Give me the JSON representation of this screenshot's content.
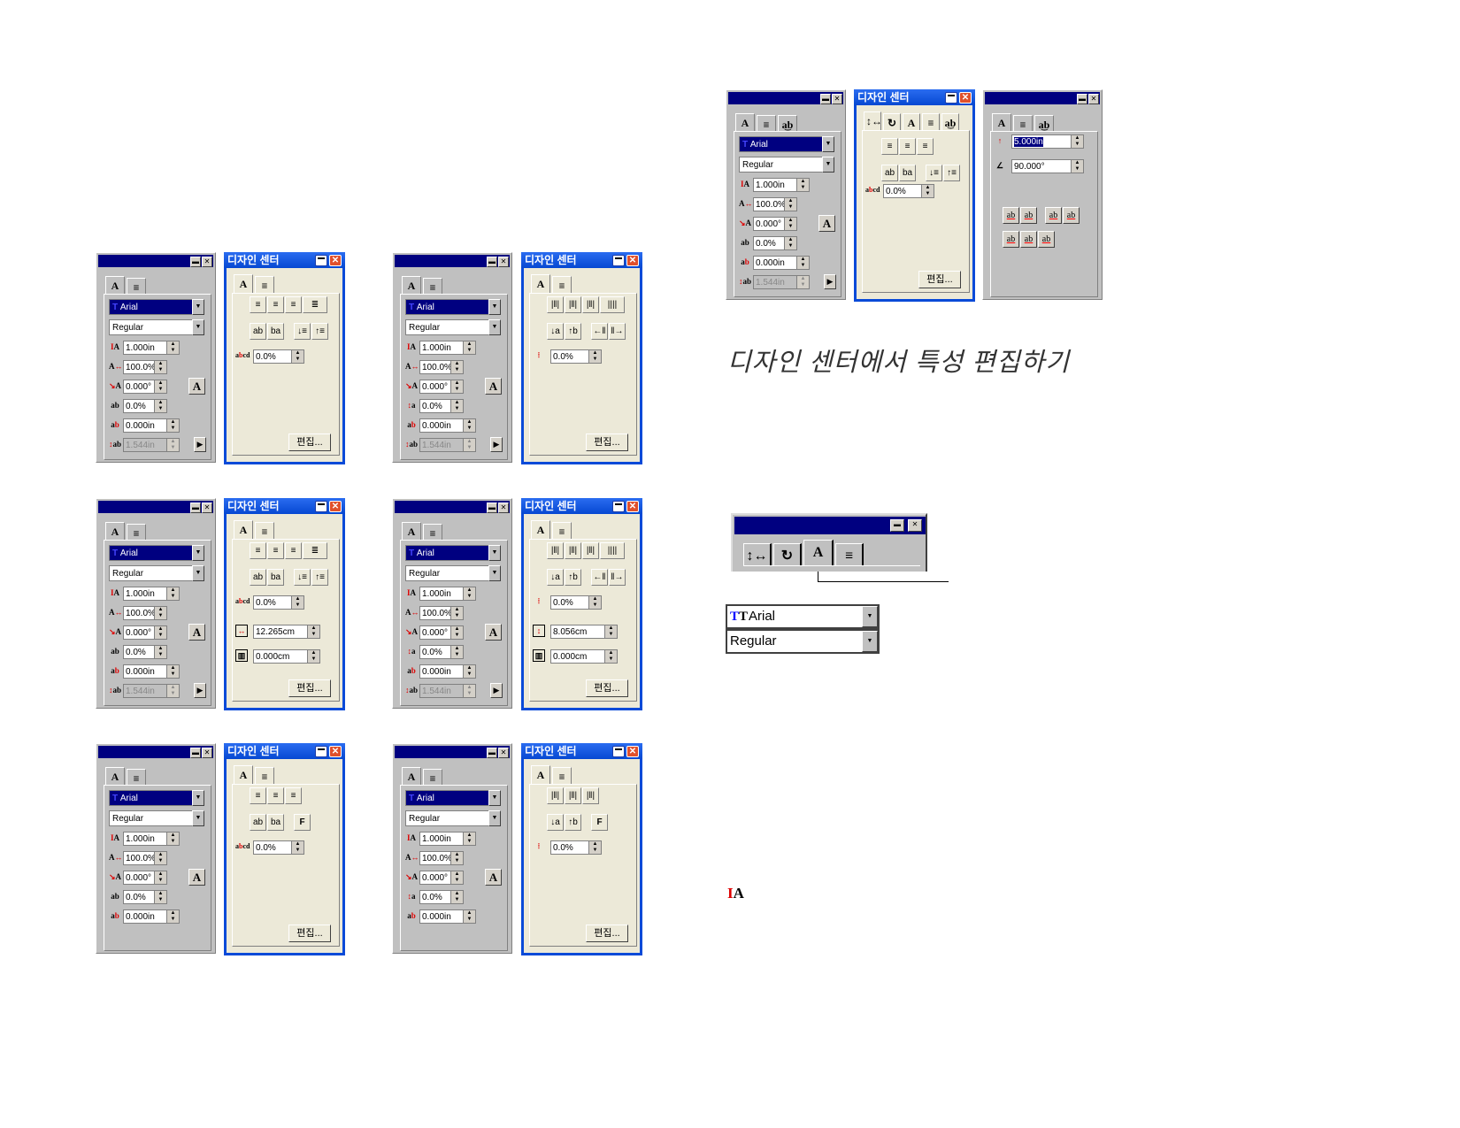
{
  "colors": {
    "title_bar_classic": "#000080",
    "title_bar_xp": "#0a4ad8",
    "panel_classic": "#c0c0c0",
    "panel_xp": "#ece9d8",
    "accent_red": "#dd0000"
  },
  "xp_title": "디자인 센터",
  "edit_label": "편집...",
  "caption": "디자인 센터에서 특성 편집하기",
  "panels": [
    {
      "type": "gray",
      "tabs": [
        "font-A-icon",
        "align-icon"
      ],
      "font": "Arial",
      "style": "Regular",
      "fields": [
        {
          "icon": "line-spacing-icon",
          "value": "1.000in"
        },
        {
          "icon": "char-width-icon",
          "value": "100.0%"
        },
        {
          "icon": "char-rotation-icon",
          "value": "0.000°"
        },
        {
          "icon": "char-spacing-icon",
          "value": "0.0%"
        },
        {
          "icon": "baseline-shift-icon",
          "value": "0.000in"
        },
        {
          "icon": "line-height-icon",
          "value": "1.544in",
          "disabled": true
        }
      ]
    },
    {
      "type": "xp",
      "tabs": [
        "font-A-icon",
        "align-icon"
      ],
      "rows": [
        [
          [
            "align-left-icon",
            "align-center-icon",
            "align-right-icon",
            "justify-icon"
          ]
        ],
        [
          [
            "ltr-icon",
            "rtl-icon"
          ],
          [
            "down-order-icon",
            "up-order-icon"
          ]
        ]
      ],
      "spin": {
        "icon": "kerning-icon",
        "value": "0.0%"
      }
    },
    {
      "type": "gray",
      "vertical": true,
      "tabs": [
        "font-A-icon",
        "align-icon"
      ],
      "font": "Arial",
      "style": "Regular",
      "fields": [
        {
          "icon": "line-spacing-icon",
          "value": "1.000in"
        },
        {
          "icon": "char-width-icon",
          "value": "100.0%"
        },
        {
          "icon": "char-rotation-icon",
          "value": "0.000°"
        },
        {
          "icon": "vertical-spacing-icon",
          "value": "0.0%"
        },
        {
          "icon": "baseline-shift-icon",
          "value": "0.000in"
        },
        {
          "icon": "line-height-icon",
          "value": "1.544in",
          "disabled": true
        }
      ]
    },
    {
      "type": "xp",
      "tabs": [
        "font-A-icon",
        "align-icon"
      ],
      "rows": [
        [
          [
            "valign-top-icon",
            "valign-center-icon",
            "valign-bottom-icon",
            "vjustify-icon"
          ]
        ],
        [
          [
            "ttb-icon",
            "btt-icon"
          ],
          [
            "left-order-icon",
            "right-order-icon"
          ]
        ]
      ],
      "spin": {
        "icon": "vertical-kerning-icon",
        "value": "0.0%"
      }
    },
    {
      "type": "gray",
      "tabs": [
        "font-A-icon",
        "align-icon"
      ],
      "font": "Arial",
      "style": "Regular",
      "fields": [
        {
          "icon": "line-spacing-icon",
          "value": "1.000in"
        },
        {
          "icon": "char-width-icon",
          "value": "100.0%"
        },
        {
          "icon": "char-rotation-icon",
          "value": "0.000°"
        },
        {
          "icon": "char-spacing-icon",
          "value": "0.0%"
        },
        {
          "icon": "baseline-shift-icon",
          "value": "0.000in"
        },
        {
          "icon": "line-height-icon",
          "value": "1.544in",
          "disabled": true
        }
      ]
    },
    {
      "type": "xp",
      "tabs": [
        "font-A-icon",
        "align-icon"
      ],
      "rows": [
        [
          [
            "align-left-icon",
            "align-center-icon",
            "align-right-icon",
            "justify-icon"
          ]
        ],
        [
          [
            "ltr-icon",
            "rtl-icon"
          ],
          [
            "down-order-icon",
            "up-order-icon"
          ]
        ]
      ],
      "spin": {
        "icon": "kerning-icon",
        "value": "0.0%"
      },
      "extra": [
        {
          "icon": "frame-width-icon",
          "value": "12.265cm"
        },
        {
          "icon": "column-gap-icon",
          "value": "0.000cm"
        }
      ]
    },
    {
      "type": "gray",
      "vertical": true,
      "tabs": [
        "font-A-icon",
        "align-icon"
      ],
      "font": "Arial",
      "style": "Regular",
      "fields": [
        {
          "icon": "line-spacing-icon",
          "value": "1.000in"
        },
        {
          "icon": "char-width-icon",
          "value": "100.0%"
        },
        {
          "icon": "char-rotation-icon",
          "value": "0.000°"
        },
        {
          "icon": "vertical-spacing-icon",
          "value": "0.0%"
        },
        {
          "icon": "baseline-shift-icon",
          "value": "0.000in"
        },
        {
          "icon": "line-height-icon",
          "value": "1.544in",
          "disabled": true
        }
      ]
    },
    {
      "type": "xp",
      "tabs": [
        "font-A-icon",
        "align-icon"
      ],
      "rows": [
        [
          [
            "valign-top-icon",
            "valign-center-icon",
            "valign-bottom-icon",
            "vjustify-icon"
          ]
        ],
        [
          [
            "ttb-icon",
            "btt-icon"
          ],
          [
            "left-order-icon",
            "right-order-icon"
          ]
        ]
      ],
      "spin": {
        "icon": "vertical-kerning-icon",
        "value": "0.0%"
      },
      "extra": [
        {
          "icon": "frame-height-icon",
          "value": "8.056cm"
        },
        {
          "icon": "column-gap-icon",
          "value": "0.000cm"
        }
      ]
    },
    {
      "type": "gray",
      "tabs": [
        "font-A-icon",
        "align-icon"
      ],
      "font": "Arial",
      "style": "Regular",
      "fields": [
        {
          "icon": "line-spacing-icon",
          "value": "1.000in"
        },
        {
          "icon": "char-width-icon",
          "value": "100.0%"
        },
        {
          "icon": "char-rotation-icon",
          "value": "0.000°"
        },
        {
          "icon": "char-spacing-icon",
          "value": "0.0%"
        },
        {
          "icon": "baseline-shift-icon",
          "value": "0.000in"
        }
      ]
    },
    {
      "type": "xp",
      "tabs": [
        "font-A-icon",
        "align-icon"
      ],
      "rows": [
        [
          [
            "align-left-icon",
            "align-center-icon",
            "align-right-icon"
          ]
        ],
        [
          [
            "ltr-icon",
            "rtl-icon"
          ],
          [
            "text-on-path-icon"
          ]
        ]
      ],
      "spin": {
        "icon": "kerning-icon",
        "value": "0.0%"
      }
    },
    {
      "type": "gray",
      "vertical": true,
      "tabs": [
        "font-A-icon",
        "align-icon"
      ],
      "font": "Arial",
      "style": "Regular",
      "fields": [
        {
          "icon": "line-spacing-icon",
          "value": "1.000in"
        },
        {
          "icon": "char-width-icon",
          "value": "100.0%"
        },
        {
          "icon": "char-rotation-icon",
          "value": "0.000°"
        },
        {
          "icon": "vertical-spacing-icon",
          "value": "0.0%"
        },
        {
          "icon": "baseline-shift-icon",
          "value": "0.000in"
        }
      ]
    },
    {
      "type": "xp",
      "tabs": [
        "font-A-icon",
        "align-icon"
      ],
      "rows": [
        [
          [
            "valign-top-icon",
            "valign-center-icon",
            "valign-bottom-icon"
          ]
        ],
        [
          [
            "ttb-icon",
            "btt-icon"
          ],
          [
            "text-on-path-icon"
          ]
        ]
      ],
      "spin": {
        "icon": "vertical-kerning-icon",
        "value": "0.0%"
      }
    },
    {
      "type": "gray",
      "tabs": [
        "font-A-icon",
        "align-icon",
        "text-on-arc-icon"
      ],
      "font": "Arial",
      "style": "Regular",
      "fields": [
        {
          "icon": "line-spacing-icon",
          "value": "1.000in"
        },
        {
          "icon": "char-width-icon",
          "value": "100.0%"
        },
        {
          "icon": "char-rotation-icon",
          "value": "0.000°"
        },
        {
          "icon": "char-spacing-icon",
          "value": "0.0%"
        },
        {
          "icon": "baseline-shift-icon",
          "value": "0.000in"
        },
        {
          "icon": "line-height-icon",
          "value": "1.544in",
          "disabled": true
        }
      ]
    },
    {
      "type": "xp",
      "tabs": [
        "spacing-icon",
        "rotate-icon",
        "font-A-icon",
        "align-icon",
        "text-on-arc-icon"
      ],
      "rows": [
        [
          [
            "align-left-icon",
            "align-center-icon",
            "align-right-icon"
          ]
        ],
        [
          [
            "ltr-icon",
            "rtl-icon"
          ],
          [
            "down-order-icon",
            "up-order-icon"
          ]
        ]
      ],
      "spin": {
        "icon": "kerning-icon",
        "value": "0.0%"
      }
    },
    {
      "type": "arc",
      "tabs": [
        "font-A-icon",
        "align-icon",
        "text-on-arc-icon"
      ],
      "fields": [
        {
          "icon": "arc-radius-icon",
          "value": "5.000in",
          "selected": true
        },
        {
          "icon": "arc-angle-icon",
          "value": "90.000°"
        }
      ],
      "rows": [
        [
          [
            "arc-top-cd-icon",
            "arc-top-ab-icon"
          ],
          [
            "arc-ab-icon",
            "arc-ab2-icon"
          ]
        ],
        [
          [
            "arc-under-icon",
            "arc-strike-icon",
            "arc-over-icon"
          ]
        ]
      ]
    }
  ],
  "detail": {
    "tabs": [
      "spacing-icon",
      "rotate-icon",
      "font-A-icon",
      "align-icon"
    ],
    "font": "Arial",
    "style": "Regular"
  }
}
